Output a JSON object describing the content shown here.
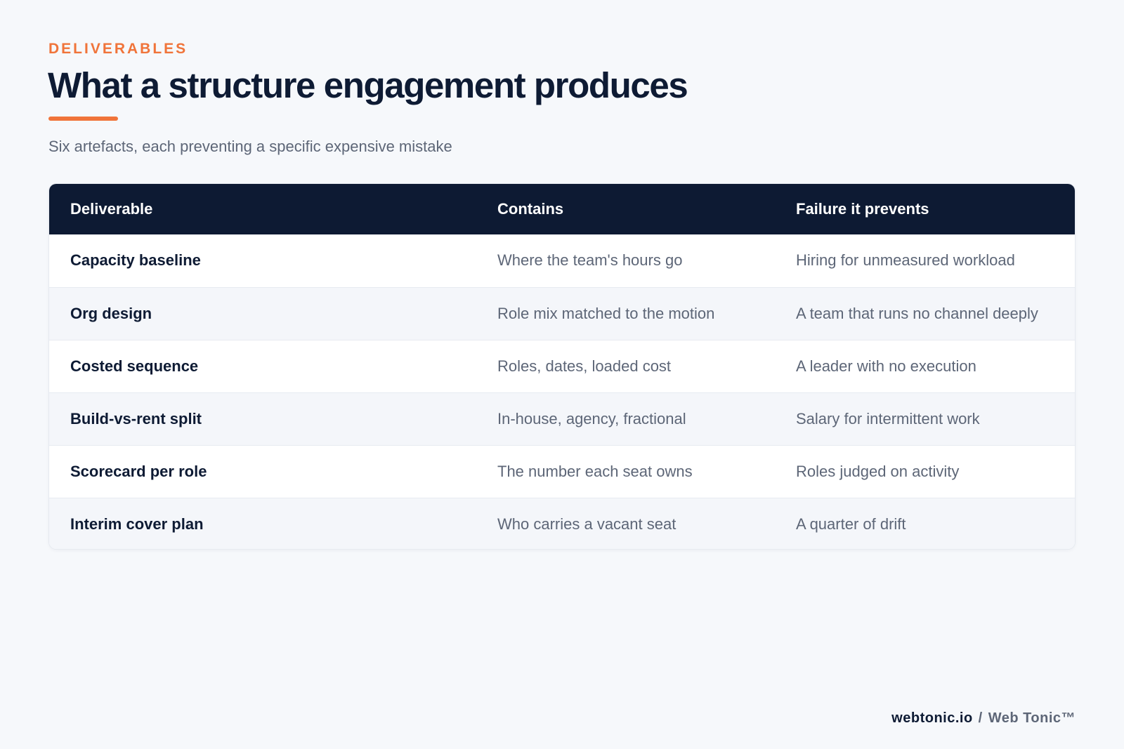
{
  "header": {
    "eyebrow": "DELIVERABLES",
    "title": "What a structure engagement produces",
    "subtitle": "Six artefacts, each preventing a specific expensive mistake",
    "accent_color": "#f0743a"
  },
  "table": {
    "header_color": "#0d1a33",
    "columns": [
      "Deliverable",
      "Contains",
      "Failure it prevents"
    ],
    "rows": [
      {
        "deliverable": "Capacity baseline",
        "contains": "Where the team's hours go",
        "prevents": "Hiring for unmeasured workload"
      },
      {
        "deliverable": "Org design",
        "contains": "Role mix matched to the motion",
        "prevents": "A team that runs no channel deeply"
      },
      {
        "deliverable": "Costed sequence",
        "contains": "Roles, dates, loaded cost",
        "prevents": "A leader with no execution"
      },
      {
        "deliverable": "Build-vs-rent split",
        "contains": "In-house, agency, fractional",
        "prevents": "Salary for intermittent work"
      },
      {
        "deliverable": "Scorecard per role",
        "contains": "The number each seat owns",
        "prevents": "Roles judged on activity"
      },
      {
        "deliverable": "Interim cover plan",
        "contains": "Who carries a vacant seat",
        "prevents": "A quarter of drift"
      }
    ]
  },
  "footer": {
    "domain": "webtonic.io",
    "separator": "/",
    "brand": "Web Tonic™"
  }
}
